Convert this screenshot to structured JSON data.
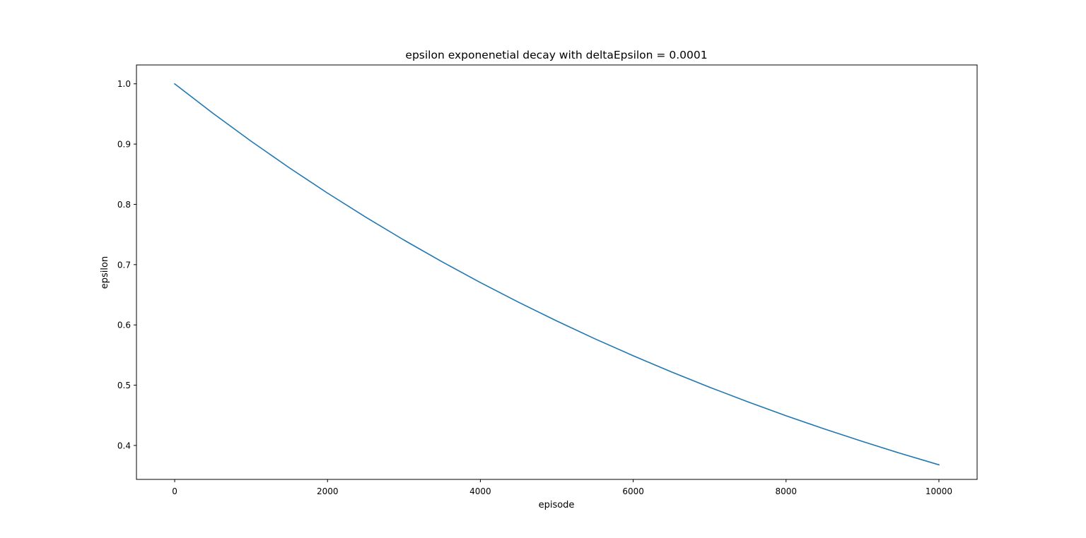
{
  "chart_data": {
    "type": "line",
    "title": "epsilon exponenetial decay with deltaEpsilon = 0.0001",
    "xlabel": "episode",
    "ylabel": "epsilon",
    "xlim": [
      -500,
      10500
    ],
    "ylim": [
      0.3437,
      1.0313
    ],
    "xticks": [
      0,
      2000,
      4000,
      6000,
      8000,
      10000
    ],
    "xtick_labels": [
      "0",
      "2000",
      "4000",
      "6000",
      "8000",
      "10000"
    ],
    "yticks": [
      0.4,
      0.5,
      0.6,
      0.7,
      0.8,
      0.9,
      1.0
    ],
    "ytick_labels": [
      "0.4",
      "0.5",
      "0.6",
      "0.7",
      "0.8",
      "0.9",
      "1.0"
    ],
    "grid": false,
    "series": [
      {
        "color": "#1f77b4",
        "x": [
          0,
          500,
          1000,
          1500,
          2000,
          2500,
          3000,
          3500,
          4000,
          4500,
          5000,
          5500,
          6000,
          6500,
          7000,
          7500,
          8000,
          8500,
          9000,
          9500,
          10000
        ],
        "y": [
          1.0,
          0.9512,
          0.9048,
          0.8607,
          0.8187,
          0.7788,
          0.7408,
          0.7047,
          0.6703,
          0.6376,
          0.6065,
          0.5769,
          0.5488,
          0.522,
          0.4966,
          0.4724,
          0.4493,
          0.4274,
          0.4066,
          0.3867,
          0.3679
        ]
      }
    ]
  }
}
